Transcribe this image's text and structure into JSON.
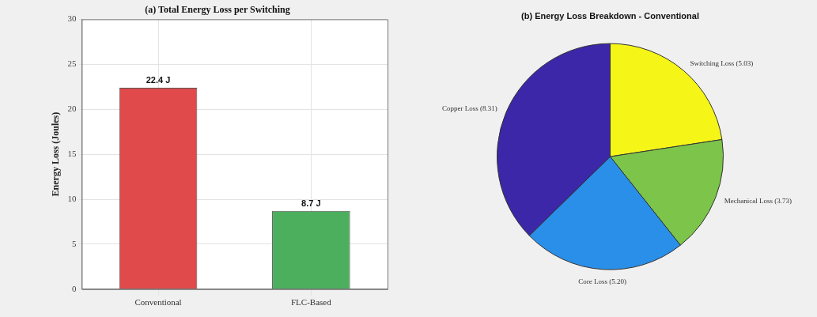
{
  "chart_data": [
    {
      "type": "bar",
      "title": "(a) Total Energy Loss per Switching",
      "ylabel": "Energy Loss (Joules)",
      "categories": [
        "Conventional",
        "FLC-Based"
      ],
      "values": [
        22.4,
        8.7
      ],
      "colors": [
        "#e04a4a",
        "#4caf5e"
      ],
      "value_labels": [
        "22.4 J",
        "8.7 J"
      ],
      "ylim": [
        0,
        30
      ],
      "yticks": [
        0,
        5,
        10,
        15,
        20,
        25,
        30
      ],
      "grid": true,
      "legend": false
    },
    {
      "type": "pie",
      "title": "(b) Energy Loss Breakdown - Conventional",
      "categories": [
        "Switching Loss (5.03)",
        "Mechanical Loss (3.73)",
        "Core Loss (5.20)",
        "Copper Loss (8.31)"
      ],
      "values": [
        5.03,
        3.73,
        5.2,
        8.31
      ],
      "colors": [
        "#f5f518",
        "#7cc44a",
        "#2a8fe8",
        "#3b27a8"
      ],
      "legend": false
    }
  ]
}
